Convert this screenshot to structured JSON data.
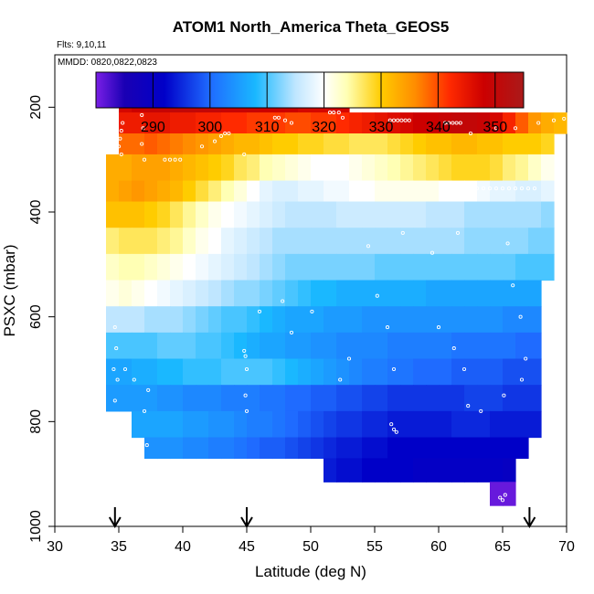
{
  "chart_data": {
    "type": "heatmap",
    "title": "ATOM1 North_America Theta_GEOS5",
    "annotations": [
      "Flts: 9,10,11",
      "MMDD: 0820,0822,0823"
    ],
    "xlabel": "Latitude (deg N)",
    "ylabel": "PSXC (mbar)",
    "xlim": [
      30,
      70
    ],
    "ylim": [
      1000,
      100
    ],
    "y_inverted": true,
    "xticks": [
      30,
      35,
      40,
      45,
      50,
      55,
      60,
      65,
      70
    ],
    "yticks": [
      200,
      400,
      600,
      800,
      1000
    ],
    "colorbar": {
      "range": [
        280,
        355
      ],
      "ticks": [
        290,
        300,
        310,
        320,
        330,
        340,
        350
      ],
      "stops": [
        {
          "v": 280,
          "c": "#7a1fe6"
        },
        {
          "v": 285,
          "c": "#1a00b4"
        },
        {
          "v": 292,
          "c": "#0000c8"
        },
        {
          "v": 300,
          "c": "#1f6bff"
        },
        {
          "v": 308,
          "c": "#1ab8ff"
        },
        {
          "v": 315,
          "c": "#bfe6ff"
        },
        {
          "v": 320,
          "c": "#ffffff"
        },
        {
          "v": 324,
          "c": "#ffffb4"
        },
        {
          "v": 330,
          "c": "#ffcc00"
        },
        {
          "v": 336,
          "c": "#ff8c00"
        },
        {
          "v": 342,
          "c": "#ff2a00"
        },
        {
          "v": 348,
          "c": "#cc0000"
        },
        {
          "v": 355,
          "c": "#aa1a1a"
        }
      ]
    },
    "flight_markers": [
      34.7,
      45.0,
      67.1
    ],
    "layers": [
      {
        "p": [
          170,
          210
        ],
        "lat": [
          35,
          53
        ],
        "theta": [
          347,
          348,
          349,
          349,
          350,
          350,
          350,
          350,
          349,
          349,
          349,
          348,
          348,
          348,
          347,
          347,
          347,
          347
        ]
      },
      {
        "p": [
          210,
          250
        ],
        "lat": [
          35,
          70
        ],
        "theta": [
          344,
          344,
          345,
          345,
          344,
          344,
          343,
          343,
          342,
          342,
          341,
          341,
          341,
          340,
          340,
          341,
          341,
          342,
          343,
          344,
          345,
          346,
          347,
          348,
          348,
          349,
          350,
          350,
          349,
          347,
          343,
          339,
          335,
          333,
          332
        ]
      },
      {
        "p": [
          250,
          290
        ],
        "lat": [
          35,
          69
        ],
        "theta": [
          338,
          338,
          339,
          338,
          337,
          336,
          335,
          334,
          333,
          332,
          332,
          331,
          330,
          330,
          329,
          329,
          328,
          328,
          327,
          327,
          327,
          328,
          329,
          330,
          331,
          331,
          332,
          332,
          331,
          331,
          330,
          330,
          330,
          329
        ]
      },
      {
        "p": [
          290,
          340
        ],
        "lat": [
          34,
          69
        ],
        "theta": [
          333,
          333,
          334,
          334,
          334,
          333,
          332,
          331,
          330,
          329,
          327,
          326,
          324,
          323,
          322,
          321,
          320,
          320,
          320,
          321,
          322,
          323,
          324,
          325,
          326,
          327,
          328,
          329,
          329,
          329,
          328,
          326,
          325,
          323,
          321
        ]
      },
      {
        "p": [
          340,
          380
        ],
        "lat": [
          34,
          69
        ],
        "theta": [
          333,
          334,
          335,
          334,
          333,
          332,
          330,
          328,
          326,
          324,
          322,
          320,
          318,
          317,
          317,
          318,
          318,
          319,
          319,
          320,
          320,
          321,
          321,
          321,
          321,
          321,
          320,
          320,
          320,
          319,
          318,
          318,
          317,
          317,
          318
        ]
      },
      {
        "p": [
          380,
          430
        ],
        "lat": [
          34,
          69
        ],
        "theta": [
          331,
          331,
          331,
          330,
          329,
          327,
          325,
          323,
          321,
          320,
          319,
          318,
          317,
          316,
          315,
          315,
          315,
          315,
          316,
          316,
          316,
          316,
          316,
          316,
          316,
          315,
          315,
          315,
          314,
          314,
          314,
          314,
          314,
          314,
          313
        ]
      },
      {
        "p": [
          430,
          480
        ],
        "lat": [
          34,
          69
        ],
        "theta": [
          326,
          327,
          327,
          327,
          326,
          325,
          323,
          321,
          320,
          318,
          317,
          316,
          315,
          314,
          314,
          314,
          314,
          314,
          314,
          314,
          314,
          314,
          314,
          314,
          314,
          314,
          314,
          314,
          313,
          313,
          313,
          313,
          313,
          312,
          312
        ]
      },
      {
        "p": [
          480,
          530
        ],
        "lat": [
          34,
          69
        ],
        "theta": [
          323,
          324,
          324,
          323,
          322,
          321,
          320,
          319,
          318,
          317,
          316,
          315,
          314,
          313,
          312,
          312,
          312,
          312,
          312,
          312,
          312,
          311,
          311,
          311,
          311,
          311,
          311,
          311,
          311,
          311,
          311,
          311,
          310,
          310,
          310
        ]
      },
      {
        "p": [
          530,
          580
        ],
        "lat": [
          34,
          68
        ],
        "theta": [
          321,
          322,
          321,
          320,
          319,
          318,
          317,
          316,
          315,
          314,
          313,
          313,
          312,
          311,
          310,
          309,
          308,
          308,
          307,
          307,
          307,
          307,
          307,
          307,
          307,
          306,
          306,
          306,
          306,
          306,
          306,
          306,
          306,
          306
        ]
      },
      {
        "p": [
          580,
          630
        ],
        "lat": [
          34,
          68
        ],
        "theta": [
          315,
          315,
          315,
          314,
          314,
          314,
          313,
          312,
          311,
          310,
          310,
          309,
          308,
          307,
          306,
          306,
          306,
          305,
          305,
          305,
          304,
          304,
          304,
          304,
          304,
          304,
          304,
          304,
          304,
          304,
          304,
          303,
          303,
          303
        ]
      },
      {
        "p": [
          630,
          680
        ],
        "lat": [
          34,
          68
        ],
        "theta": [
          310,
          310,
          310,
          310,
          311,
          311,
          311,
          310,
          310,
          309,
          308,
          307,
          306,
          306,
          305,
          305,
          304,
          304,
          303,
          303,
          303,
          303,
          302,
          302,
          302,
          302,
          302,
          301,
          301,
          301,
          301,
          301,
          300,
          300
        ]
      },
      {
        "p": [
          680,
          730
        ],
        "lat": [
          34,
          68
        ],
        "theta": [
          306,
          306,
          307,
          307,
          308,
          308,
          309,
          309,
          309,
          310,
          310,
          310,
          310,
          309,
          308,
          307,
          306,
          305,
          304,
          303,
          302,
          302,
          301,
          301,
          300,
          300,
          300,
          299,
          299,
          299,
          299,
          298,
          298,
          298
        ]
      },
      {
        "p": [
          730,
          780
        ],
        "lat": [
          34,
          68
        ],
        "theta": [
          305,
          305,
          305,
          305,
          304,
          304,
          303,
          303,
          303,
          302,
          302,
          302,
          301,
          301,
          300,
          300,
          299,
          299,
          298,
          298,
          297,
          297,
          296,
          296,
          296,
          296,
          296,
          296,
          297,
          297,
          297,
          296,
          296,
          296
        ]
      },
      {
        "p": [
          780,
          830
        ],
        "lat": [
          36,
          68
        ],
        "theta": [
          306,
          306,
          306,
          306,
          305,
          305,
          304,
          304,
          303,
          302,
          302,
          301,
          300,
          299,
          298,
          297,
          296,
          296,
          295,
          295,
          294,
          294,
          294,
          294,
          294,
          295,
          295,
          295,
          294,
          294,
          294,
          294
        ]
      },
      {
        "p": [
          830,
          870
        ],
        "lat": [
          37,
          67
        ],
        "theta": [
          304,
          304,
          304,
          303,
          303,
          302,
          302,
          301,
          300,
          299,
          299,
          298,
          297,
          296,
          295,
          294,
          294,
          293,
          293,
          292,
          292,
          292,
          292,
          292,
          292,
          292,
          292,
          292,
          292,
          292
        ]
      },
      {
        "p": [
          870,
          915
        ],
        "lat": [
          51,
          66
        ],
        "theta": [
          294,
          293,
          293,
          292,
          292,
          292,
          292,
          291,
          291,
          291,
          291,
          291,
          291,
          291,
          290
        ]
      },
      {
        "p": [
          915,
          960
        ],
        "lat": [
          64,
          66
        ],
        "theta": [
          281,
          281
        ]
      }
    ],
    "obs_points": [
      [
        35.6,
        190
      ],
      [
        35.9,
        190
      ],
      [
        36.2,
        190
      ],
      [
        36.5,
        190
      ],
      [
        36.8,
        190
      ],
      [
        37.1,
        190
      ],
      [
        35.3,
        230
      ],
      [
        35.2,
        245
      ],
      [
        35.1,
        260
      ],
      [
        35.0,
        275
      ],
      [
        35.2,
        290
      ],
      [
        36.8,
        215
      ],
      [
        36.9,
        240
      ],
      [
        36.8,
        270
      ],
      [
        37.0,
        300
      ],
      [
        38.6,
        300
      ],
      [
        39.0,
        300
      ],
      [
        39.4,
        300
      ],
      [
        39.8,
        300
      ],
      [
        41.5,
        275
      ],
      [
        42.5,
        265
      ],
      [
        43.0,
        255
      ],
      [
        43.3,
        250
      ],
      [
        43.6,
        250
      ],
      [
        44.8,
        290
      ],
      [
        47.2,
        220
      ],
      [
        47.5,
        220
      ],
      [
        48.0,
        225
      ],
      [
        48.5,
        230
      ],
      [
        51.5,
        210
      ],
      [
        51.8,
        210
      ],
      [
        52.2,
        210
      ],
      [
        52.5,
        220
      ],
      [
        56.2,
        225
      ],
      [
        56.5,
        225
      ],
      [
        56.8,
        225
      ],
      [
        57.1,
        225
      ],
      [
        57.4,
        225
      ],
      [
        57.7,
        225
      ],
      [
        60.5,
        230
      ],
      [
        60.8,
        230
      ],
      [
        61.1,
        230
      ],
      [
        61.4,
        230
      ],
      [
        61.7,
        230
      ],
      [
        62.5,
        250
      ],
      [
        64.5,
        240
      ],
      [
        66.0,
        240
      ],
      [
        67.8,
        230
      ],
      [
        69.0,
        225
      ],
      [
        69.8,
        222
      ],
      [
        61.0,
        355
      ],
      [
        61.5,
        355
      ],
      [
        62.0,
        355
      ],
      [
        62.5,
        355
      ],
      [
        63.0,
        355
      ],
      [
        63.5,
        355
      ],
      [
        64.0,
        355
      ],
      [
        64.5,
        355
      ],
      [
        65.0,
        355
      ],
      [
        65.5,
        355
      ],
      [
        66.0,
        355
      ],
      [
        66.5,
        355
      ],
      [
        67.0,
        355
      ],
      [
        67.5,
        355
      ],
      [
        34.7,
        620
      ],
      [
        34.8,
        660
      ],
      [
        34.6,
        700
      ],
      [
        34.9,
        720
      ],
      [
        34.7,
        760
      ],
      [
        35.5,
        700
      ],
      [
        36.2,
        720
      ],
      [
        37.3,
        740
      ],
      [
        37.0,
        780
      ],
      [
        37.2,
        845
      ],
      [
        44.8,
        665
      ],
      [
        44.9,
        675
      ],
      [
        45.0,
        700
      ],
      [
        44.9,
        750
      ],
      [
        45.0,
        780
      ],
      [
        46.0,
        590
      ],
      [
        47.8,
        570
      ],
      [
        48.5,
        630
      ],
      [
        50.1,
        590
      ],
      [
        52.3,
        720
      ],
      [
        53.0,
        680
      ],
      [
        55.2,
        560
      ],
      [
        56.0,
        620
      ],
      [
        56.5,
        700
      ],
      [
        60.0,
        620
      ],
      [
        61.2,
        660
      ],
      [
        62.0,
        700
      ],
      [
        62.3,
        770
      ],
      [
        63.3,
        780
      ],
      [
        65.4,
        460
      ],
      [
        65.8,
        540
      ],
      [
        66.4,
        600
      ],
      [
        66.8,
        680
      ],
      [
        66.5,
        720
      ],
      [
        65.1,
        750
      ],
      [
        65.2,
        940
      ],
      [
        65.0,
        950
      ],
      [
        64.8,
        945
      ],
      [
        56.3,
        805
      ],
      [
        56.5,
        815
      ],
      [
        56.7,
        820
      ],
      [
        54.5,
        465
      ],
      [
        57.2,
        440
      ],
      [
        59.5,
        478
      ],
      [
        61.5,
        440
      ]
    ]
  }
}
